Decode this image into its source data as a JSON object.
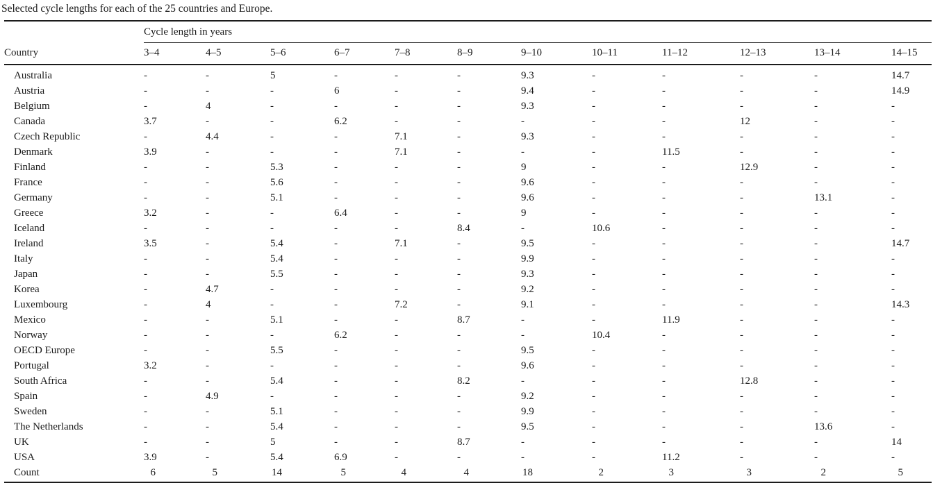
{
  "caption": "Selected cycle lengths for each of the 25 countries and Europe.",
  "table": {
    "group_header": "Cycle length in years",
    "row_header": "Country",
    "columns": [
      "3–4",
      "4–5",
      "5–6",
      "6–7",
      "7–8",
      "8–9",
      "9–10",
      "10–11",
      "11–12",
      "12–13",
      "13–14",
      "14–15"
    ],
    "rows": [
      {
        "country": "Australia",
        "values": [
          "-",
          "-",
          "5",
          "-",
          "-",
          "-",
          "9.3",
          "-",
          "-",
          "-",
          "-",
          "14.7"
        ]
      },
      {
        "country": "Austria",
        "values": [
          "-",
          "-",
          "-",
          "6",
          "-",
          "-",
          "9.4",
          "-",
          "-",
          "-",
          "-",
          "14.9"
        ]
      },
      {
        "country": "Belgium",
        "values": [
          "-",
          "4",
          "-",
          "-",
          "-",
          "-",
          "9.3",
          "-",
          "-",
          "-",
          "-",
          "-"
        ]
      },
      {
        "country": "Canada",
        "values": [
          "3.7",
          "-",
          "-",
          "6.2",
          "-",
          "-",
          "-",
          "-",
          "-",
          "12",
          "-",
          "-"
        ]
      },
      {
        "country": "Czech Republic",
        "values": [
          "-",
          "4.4",
          "-",
          "-",
          "7.1",
          "-",
          "9.3",
          "-",
          "-",
          "-",
          "-",
          "-"
        ]
      },
      {
        "country": "Denmark",
        "values": [
          "3.9",
          "-",
          "-",
          "-",
          "7.1",
          "-",
          "-",
          "-",
          "11.5",
          "-",
          "-",
          "-"
        ]
      },
      {
        "country": "Finland",
        "values": [
          "-",
          "-",
          "5.3",
          "-",
          "-",
          "-",
          "9",
          "-",
          "-",
          "12.9",
          "-",
          "-"
        ]
      },
      {
        "country": "France",
        "values": [
          "-",
          "-",
          "5.6",
          "-",
          "-",
          "-",
          "9.6",
          "-",
          "-",
          "-",
          "-",
          "-"
        ]
      },
      {
        "country": "Germany",
        "values": [
          "-",
          "-",
          "5.1",
          "-",
          "-",
          "-",
          "9.6",
          "-",
          "-",
          "-",
          "13.1",
          "-"
        ]
      },
      {
        "country": "Greece",
        "values": [
          "3.2",
          "-",
          "-",
          "6.4",
          "-",
          "-",
          "9",
          "-",
          "-",
          "-",
          "-",
          "-"
        ]
      },
      {
        "country": "Iceland",
        "values": [
          "-",
          "-",
          "-",
          "-",
          "-",
          "8.4",
          "-",
          "10.6",
          "-",
          "-",
          "-",
          "-"
        ]
      },
      {
        "country": "Ireland",
        "values": [
          "3.5",
          "-",
          "5.4",
          "-",
          "7.1",
          "-",
          "9.5",
          "-",
          "-",
          "-",
          "-",
          "14.7"
        ]
      },
      {
        "country": "Italy",
        "values": [
          "-",
          "-",
          "5.4",
          "-",
          "-",
          "-",
          "9.9",
          "-",
          "-",
          "-",
          "-",
          "-"
        ]
      },
      {
        "country": "Japan",
        "values": [
          "-",
          "-",
          "5.5",
          "-",
          "-",
          "-",
          "9.3",
          "-",
          "-",
          "-",
          "-",
          "-"
        ]
      },
      {
        "country": "Korea",
        "values": [
          "-",
          "4.7",
          "-",
          "-",
          "-",
          "-",
          "9.2",
          "-",
          "-",
          "-",
          "-",
          "-"
        ]
      },
      {
        "country": "Luxembourg",
        "values": [
          "-",
          "4",
          "-",
          "-",
          "7.2",
          "-",
          "9.1",
          "-",
          "-",
          "-",
          "-",
          "14.3"
        ]
      },
      {
        "country": "Mexico",
        "values": [
          "-",
          "-",
          "5.1",
          "-",
          "-",
          "8.7",
          "-",
          "-",
          "11.9",
          "-",
          "-",
          "-"
        ]
      },
      {
        "country": "Norway",
        "values": [
          "-",
          "-",
          "-",
          "6.2",
          "-",
          "-",
          "-",
          "10.4",
          "-",
          "-",
          "-",
          "-"
        ]
      },
      {
        "country": "OECD Europe",
        "values": [
          "-",
          "-",
          "5.5",
          "-",
          "-",
          "-",
          "9.5",
          "-",
          "-",
          "-",
          "-",
          "-"
        ]
      },
      {
        "country": "Portugal",
        "values": [
          "3.2",
          "-",
          "-",
          "-",
          "-",
          "-",
          "9.6",
          "-",
          "-",
          "-",
          "-",
          "-"
        ]
      },
      {
        "country": "South Africa",
        "values": [
          "-",
          "-",
          "5.4",
          "-",
          "-",
          "8.2",
          "-",
          "-",
          "-",
          "12.8",
          "-",
          "-"
        ]
      },
      {
        "country": "Spain",
        "values": [
          "-",
          "4.9",
          "-",
          "-",
          "-",
          "-",
          "9.2",
          "-",
          "-",
          "-",
          "-",
          "-"
        ]
      },
      {
        "country": "Sweden",
        "values": [
          "-",
          "-",
          "5.1",
          "-",
          "-",
          "-",
          "9.9",
          "-",
          "-",
          "-",
          "-",
          "-"
        ]
      },
      {
        "country": "The Netherlands",
        "values": [
          "-",
          "-",
          "5.4",
          "-",
          "-",
          "-",
          "9.5",
          "-",
          "-",
          "-",
          "13.6",
          "-"
        ]
      },
      {
        "country": "UK",
        "values": [
          "-",
          "-",
          "5",
          "-",
          "-",
          "8.7",
          "-",
          "-",
          "-",
          "-",
          "-",
          "14"
        ]
      },
      {
        "country": "USA",
        "values": [
          "3.9",
          "-",
          "5.4",
          "6.9",
          "-",
          "-",
          "-",
          "-",
          "11.2",
          "-",
          "-",
          "-"
        ]
      }
    ],
    "footer": {
      "label": "Count",
      "values": [
        "6",
        "5",
        "14",
        "5",
        "4",
        "4",
        "18",
        "2",
        "3",
        "3",
        "2",
        "5"
      ]
    }
  }
}
